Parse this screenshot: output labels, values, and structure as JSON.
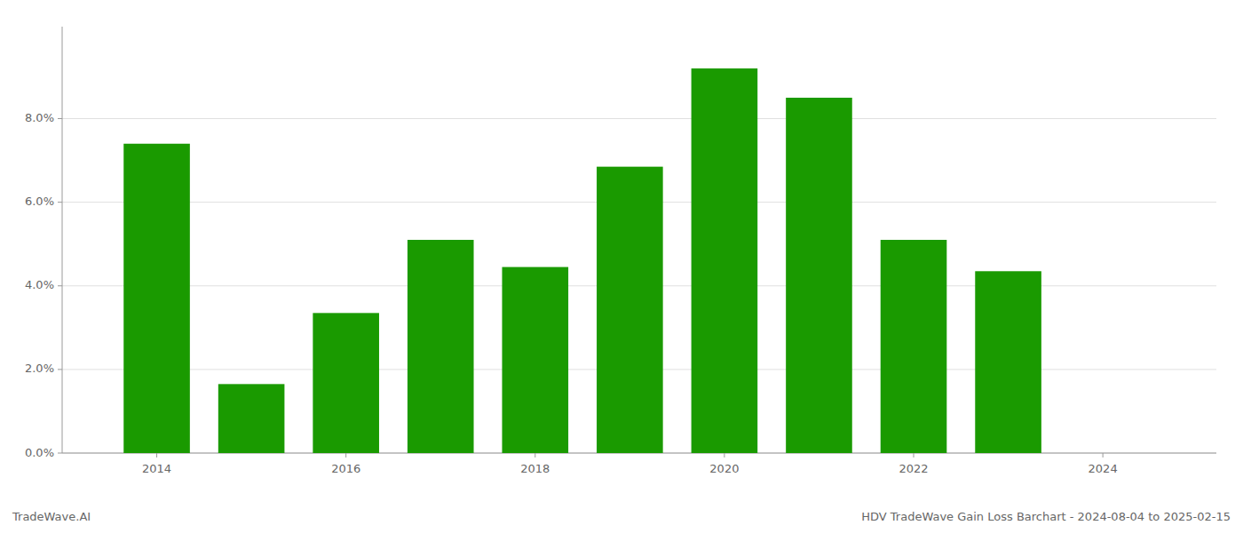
{
  "chart_data": {
    "type": "bar",
    "title": "HDV TradeWave Gain Loss Barchart - 2024-08-04 to 2025-02-15",
    "annotations": [
      "TradeWave.AI"
    ],
    "x": [
      2014,
      2015,
      2016,
      2017,
      2018,
      2019,
      2020,
      2021,
      2022,
      2023
    ],
    "values": [
      0.074,
      0.0165,
      0.0335,
      0.051,
      0.0445,
      0.0685,
      0.092,
      0.085,
      0.051,
      0.0435
    ],
    "color": "#1a9a00",
    "xlim": [
      2013.0,
      2025.2
    ],
    "xticks": [
      2014,
      2016,
      2018,
      2020,
      2022,
      2024
    ],
    "ylim": [
      0,
      0.102
    ],
    "yticks": [
      {
        "value": 0.0,
        "label": "0.0%"
      },
      {
        "value": 0.02,
        "label": "2.0%"
      },
      {
        "value": 0.04,
        "label": "4.0%"
      },
      {
        "value": 0.06,
        "label": "6.0%"
      },
      {
        "value": 0.08,
        "label": "8.0%"
      }
    ],
    "grid": true
  }
}
